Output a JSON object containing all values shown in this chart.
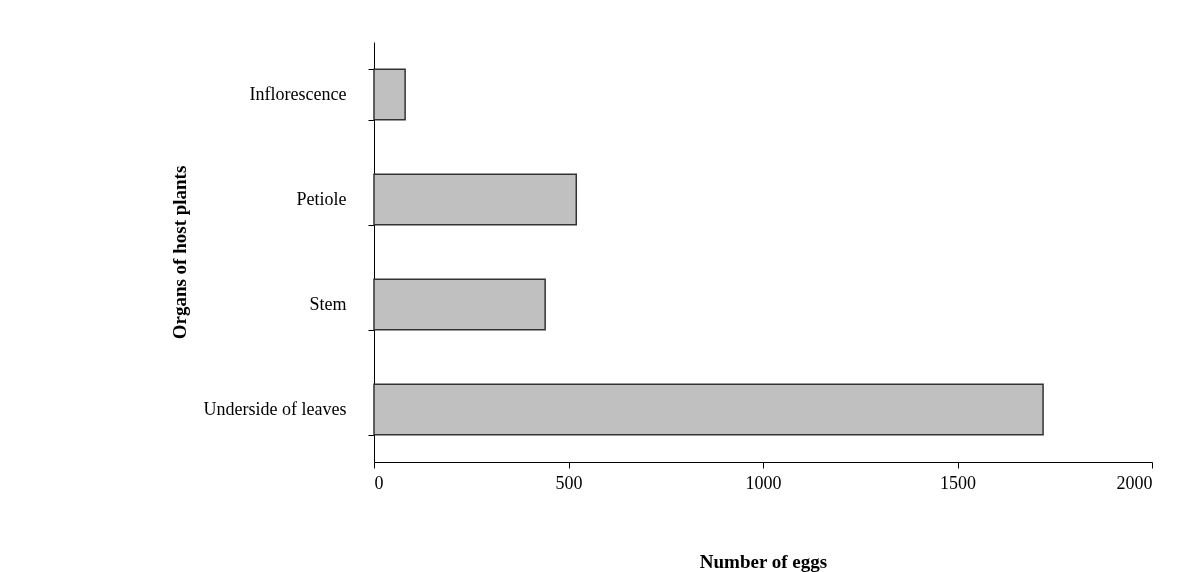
{
  "chart_data": {
    "type": "bar",
    "orientation": "horizontal",
    "xlabel": "Number of eggs",
    "ylabel": "Organs of host plants",
    "categories": [
      "Inflorescence",
      "Petiole",
      "Stem",
      "Underside of leaves"
    ],
    "values": [
      80,
      520,
      440,
      1720
    ],
    "color": "#c0c0c0",
    "xlim": [
      0,
      2000
    ],
    "xticks": [
      0,
      500,
      1000,
      1500,
      2000
    ],
    "grid": false
  }
}
